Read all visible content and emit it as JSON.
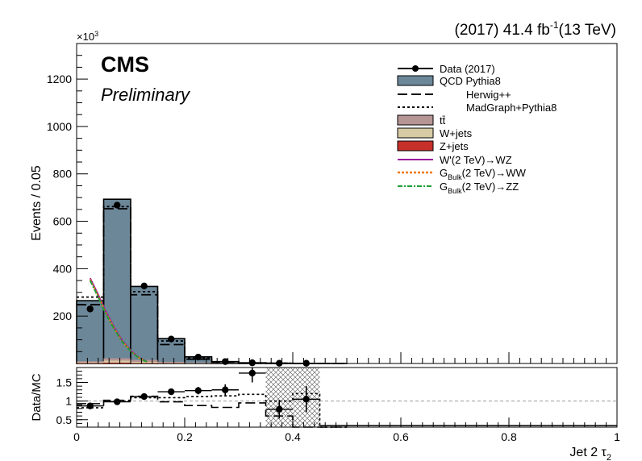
{
  "header": {
    "lumi_prefix": "(2017) 41.4 fb",
    "lumi_exp": "-1",
    "lumi_suffix": "(13 TeV)",
    "cms_label": "CMS",
    "prelim_label": "Preliminary",
    "y_multiplier_base": "×10",
    "y_multiplier_exp": "3"
  },
  "legend": {
    "data": "Data (2017)",
    "qcd": "QCD Pythia8",
    "herwig": "Herwig++",
    "madgraph": "MadGraph+Pythia8",
    "ttbar": "tt̄",
    "wjets": "W+jets",
    "zjets": "Z+jets",
    "wprime": "W'(2 TeV)→WZ",
    "gww_main": "G",
    "gww_sub": "Bulk",
    "gww_rest": "(2 TeV)→WW",
    "gzz_main": "G",
    "gzz_sub": "Bulk",
    "gzz_rest": "(2 TeV)→ZZ"
  },
  "colors": {
    "qcd": "#6c8798",
    "ttbar": "#b69595",
    "wjets": "#d7cba5",
    "zjets": "#c7302a",
    "wprime": "#9a1aa0",
    "gww": "#f07a10",
    "gzz": "#1f9e34"
  },
  "chart_data": [
    {
      "type": "bar",
      "xlabel": "Jet 2 τ",
      "xlabel_sub": "2",
      "ylabel": "Events / 0.05",
      "xlim": [
        0,
        1
      ],
      "ylim": [
        0,
        1350
      ],
      "y_units_note": "×10^3",
      "x_ticks": [
        0,
        0.2,
        0.4,
        0.6,
        0.8,
        1
      ],
      "x_tick_labels": [
        "0",
        "0.2",
        "0.4",
        "0.6",
        "0.8",
        "1"
      ],
      "y_ticks": [
        200,
        400,
        600,
        800,
        1000,
        1200
      ],
      "y_tick_labels": [
        "200",
        "400",
        "600",
        "800",
        "1000",
        "1200"
      ],
      "bin_edges": [
        0,
        0.05,
        0.1,
        0.15,
        0.2,
        0.25,
        0.3,
        0.35,
        0.4,
        0.45,
        0.5
      ],
      "series": [
        {
          "name": "QCD Pythia8",
          "style": "filled",
          "values": [
            265,
            693,
            325,
            105,
            28,
            8,
            3,
            1,
            0.5,
            0.2
          ]
        },
        {
          "name": "Herwig++",
          "style": "dashed",
          "values": [
            248,
            653,
            290,
            80,
            18,
            5,
            2,
            1,
            0.5,
            0.2
          ]
        },
        {
          "name": "MadGraph+Pythia8",
          "style": "dotted",
          "values": [
            280,
            662,
            303,
            95,
            24,
            7,
            2,
            1,
            0.5,
            0.2
          ]
        },
        {
          "name": "tt̄",
          "style": "filled",
          "values": [
            4,
            10,
            8,
            4,
            2,
            1,
            0.5,
            0.2,
            0.1,
            0
          ]
        },
        {
          "name": "W+jets",
          "style": "filled",
          "values": [
            3,
            8,
            5,
            2,
            1,
            0.5,
            0.2,
            0.1,
            0,
            0
          ]
        },
        {
          "name": "Z+jets",
          "style": "filled",
          "values": [
            2,
            4,
            2,
            1,
            0.5,
            0.2,
            0.1,
            0,
            0,
            0
          ]
        },
        {
          "name": "Data (2017)",
          "style": "points",
          "x": [
            0.025,
            0.075,
            0.125,
            0.175,
            0.225,
            0.275,
            0.325,
            0.375,
            0.425
          ],
          "values": [
            230,
            668,
            327,
            103,
            27,
            8,
            3,
            1,
            1
          ]
        }
      ],
      "signal_curves": [
        {
          "name": "W'(2 TeV)→WZ",
          "x": [
            0.025,
            0.04,
            0.055,
            0.07,
            0.085,
            0.1,
            0.115,
            0.13
          ],
          "values": [
            360,
            290,
            215,
            150,
            95,
            55,
            25,
            8
          ]
        },
        {
          "name": "G_Bulk(2 TeV)→WW",
          "x": [
            0.025,
            0.04,
            0.055,
            0.07,
            0.085,
            0.1,
            0.115,
            0.13
          ],
          "values": [
            355,
            285,
            210,
            146,
            92,
            53,
            24,
            7
          ]
        },
        {
          "name": "G_Bulk(2 TeV)→ZZ",
          "x": [
            0.025,
            0.04,
            0.055,
            0.07,
            0.085,
            0.1,
            0.115,
            0.13
          ],
          "values": [
            350,
            280,
            205,
            143,
            90,
            52,
            23,
            7
          ]
        }
      ]
    },
    {
      "type": "scatter",
      "ylabel": "Data/MC",
      "xlim": [
        0,
        1
      ],
      "ylim": [
        0.3,
        1.9
      ],
      "y_ticks": [
        0.5,
        1,
        1.5
      ],
      "y_tick_labels": [
        "0.5",
        "1",
        "1.5"
      ],
      "bin_edges": [
        0,
        0.05,
        0.1,
        0.15,
        0.2,
        0.25,
        0.3,
        0.35,
        0.4,
        0.45
      ],
      "ratio_points": {
        "x": [
          0.025,
          0.075,
          0.125,
          0.175,
          0.225,
          0.275,
          0.325,
          0.375,
          0.425
        ],
        "values": [
          0.87,
          0.98,
          1.12,
          1.25,
          1.28,
          1.3,
          1.75,
          0.78,
          1.05
        ],
        "errors": [
          0.04,
          0.03,
          0.04,
          0.06,
          0.1,
          0.15,
          0.25,
          0.25,
          0.35
        ]
      },
      "herwig_ratio": [
        0.93,
        1.02,
        1.13,
        0.98,
        0.88,
        0.83,
        0.95,
        0.6,
        0.15,
        0.05
      ],
      "madgraph_ratio": [
        0.82,
        1.0,
        1.09,
        1.09,
        1.12,
        1.14,
        1.18,
        1.0,
        1.2,
        0.05
      ]
    }
  ]
}
